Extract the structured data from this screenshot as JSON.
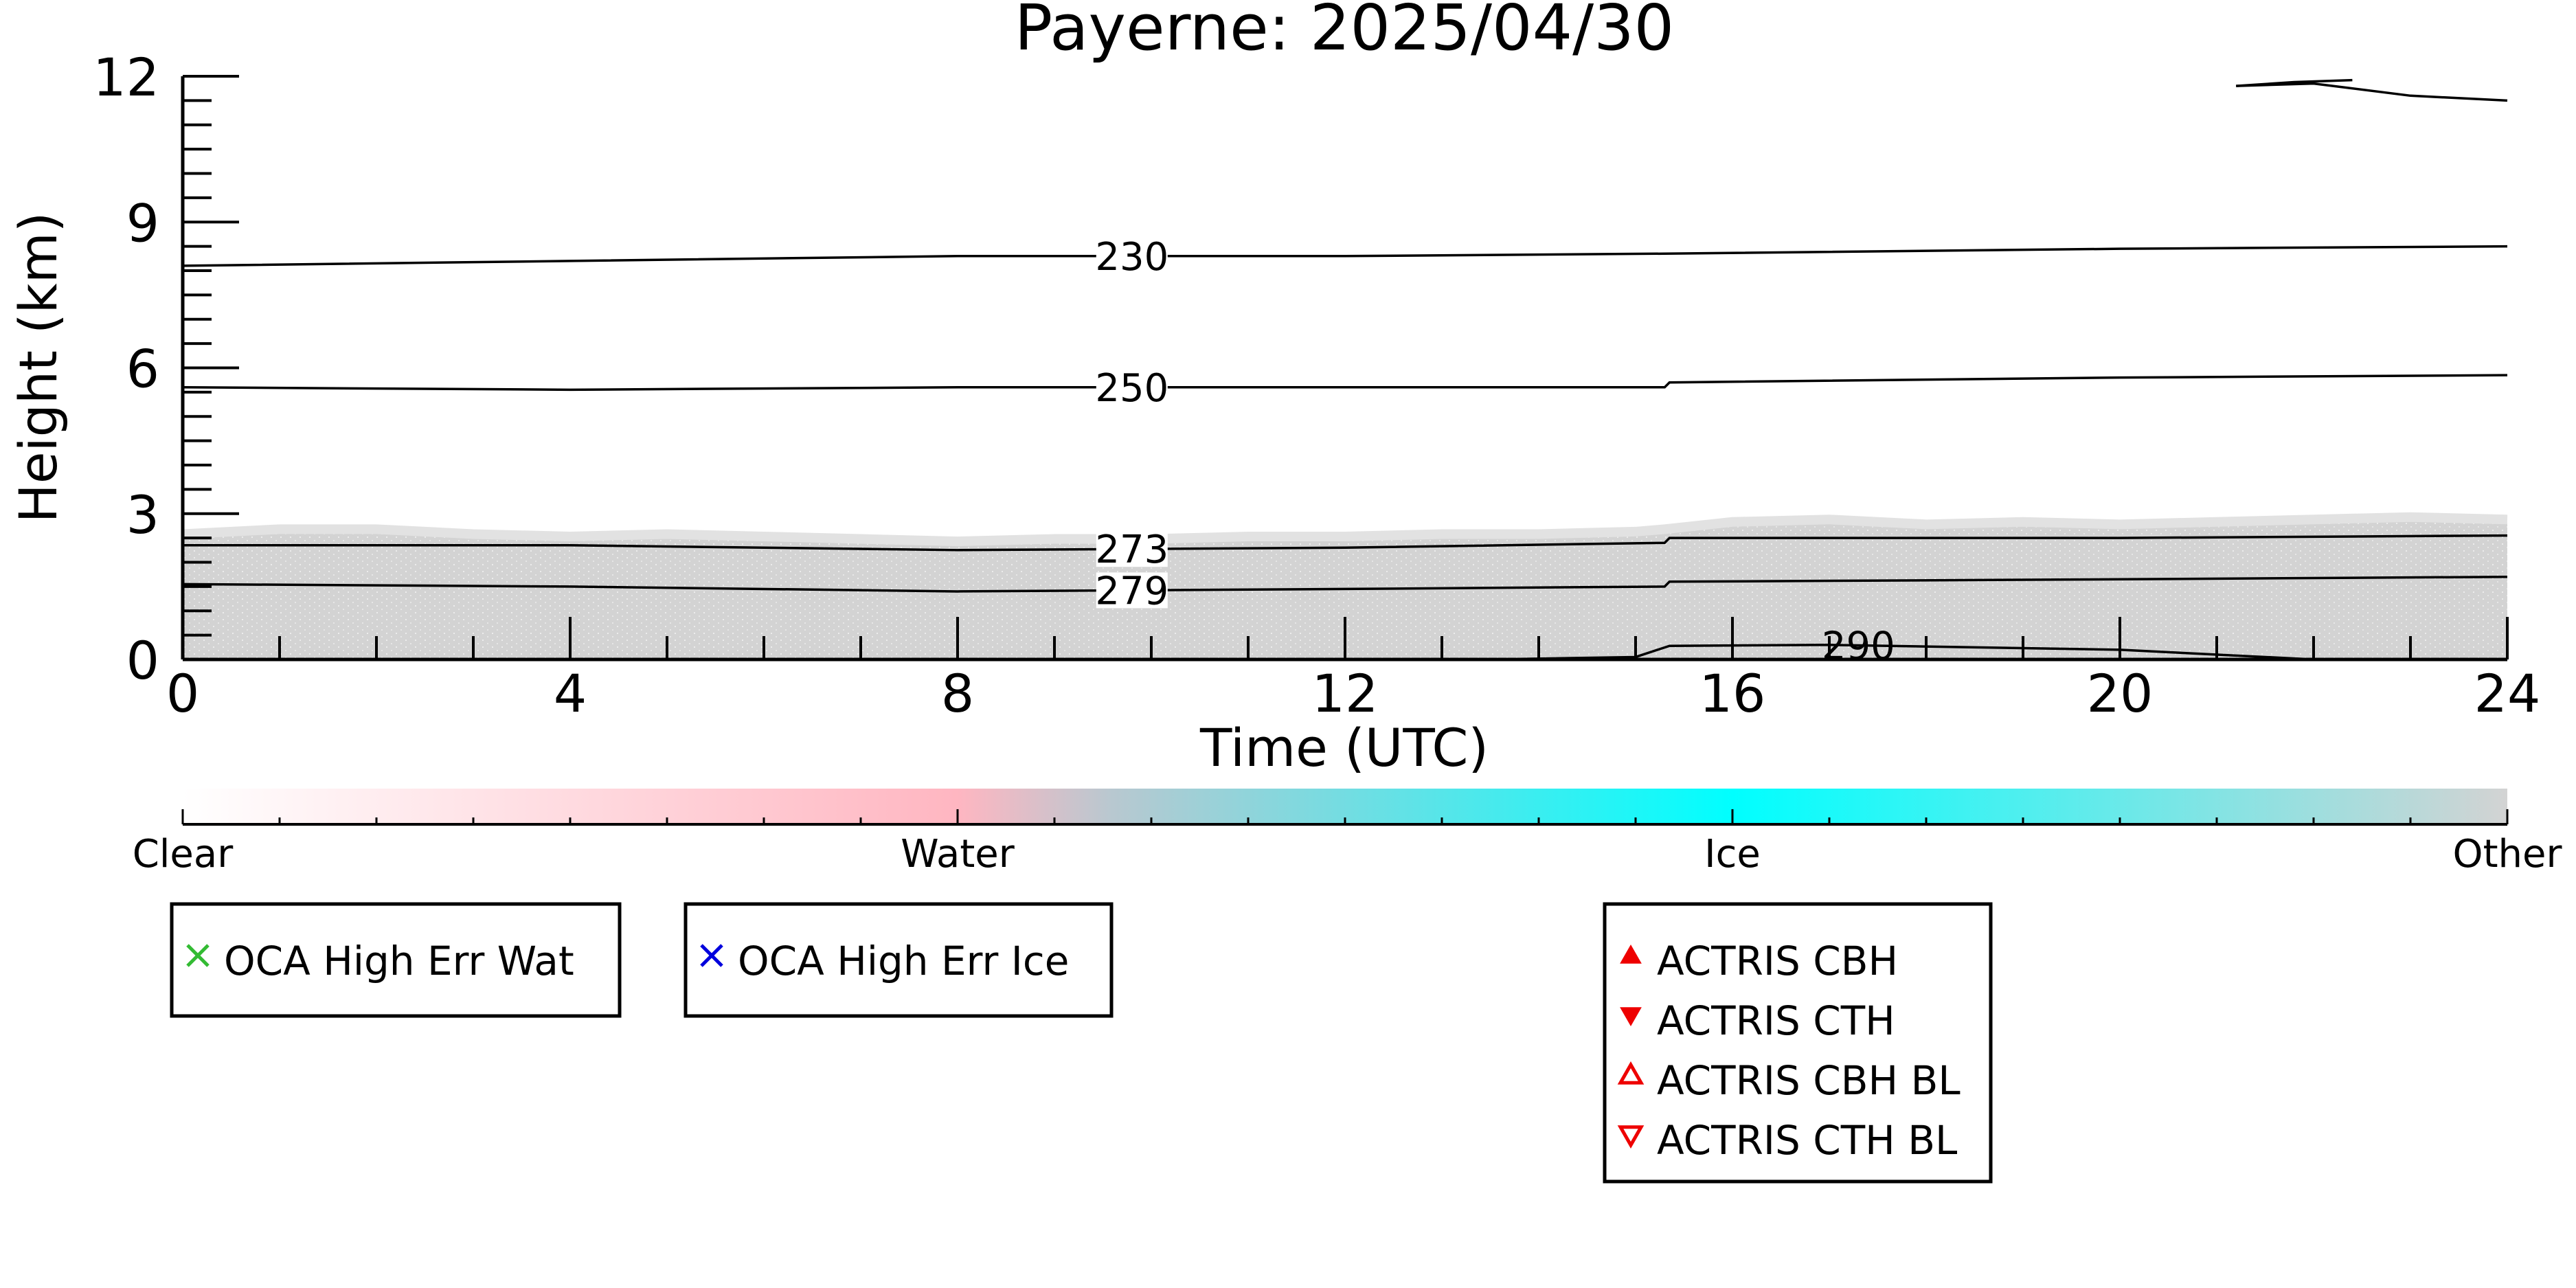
{
  "chart_data": {
    "type": "line",
    "title": "Payerne: 2025/04/30",
    "xlabel": "Time (UTC)",
    "ylabel": "Height (km)",
    "xlim": [
      0,
      24
    ],
    "ylim": [
      0,
      12
    ],
    "x_ticks": [
      0,
      4,
      8,
      12,
      16,
      20,
      24
    ],
    "y_ticks": [
      0,
      3,
      6,
      9,
      12
    ],
    "contour_series": [
      {
        "label": "230",
        "label_x": 9.8,
        "x": [
          0,
          4,
          8,
          12,
          15.3,
          20,
          24
        ],
        "y": [
          8.1,
          8.2,
          8.3,
          8.3,
          8.35,
          8.45,
          8.5
        ]
      },
      {
        "label": "250",
        "label_x": 9.8,
        "x": [
          0,
          4,
          8,
          12,
          15.3,
          15.35,
          20,
          24
        ],
        "y": [
          5.6,
          5.55,
          5.6,
          5.6,
          5.6,
          5.7,
          5.8,
          5.85
        ]
      },
      {
        "label": "273",
        "label_x": 9.8,
        "x": [
          0,
          4,
          8,
          12,
          15.3,
          15.35,
          20,
          24
        ],
        "y": [
          2.35,
          2.35,
          2.25,
          2.3,
          2.4,
          2.5,
          2.5,
          2.55
        ]
      },
      {
        "label": "279",
        "label_x": 9.8,
        "x": [
          0,
          4,
          8,
          12,
          15.3,
          15.35,
          20,
          24
        ],
        "y": [
          1.55,
          1.5,
          1.4,
          1.45,
          1.5,
          1.6,
          1.65,
          1.7
        ]
      },
      {
        "label": "290",
        "label_x": 17.3,
        "x": [
          13.5,
          15.0,
          15.35,
          17,
          20,
          22
        ],
        "y": [
          0.0,
          0.05,
          0.28,
          0.3,
          0.2,
          0.0
        ]
      }
    ],
    "upper_curve": {
      "x": [
        21.2,
        22,
        23,
        24
      ],
      "y": [
        11.8,
        11.85,
        11.6,
        11.5
      ]
    },
    "upper_curve_branch": {
      "x": [
        21.2,
        21.8,
        22.4
      ],
      "y": [
        11.8,
        11.88,
        11.92
      ]
    },
    "cloud_field": {
      "category": "Other",
      "x": [
        0,
        1,
        2,
        3,
        4,
        5,
        6,
        7,
        8,
        9,
        10,
        11,
        12,
        13,
        14,
        15,
        15.3,
        16,
        17,
        18,
        19,
        20,
        21,
        22,
        23,
        24
      ],
      "top_km": [
        2.5,
        2.6,
        2.6,
        2.5,
        2.45,
        2.5,
        2.45,
        2.4,
        2.35,
        2.4,
        2.4,
        2.45,
        2.45,
        2.5,
        2.5,
        2.55,
        2.6,
        2.75,
        2.8,
        2.7,
        2.75,
        2.7,
        2.75,
        2.8,
        2.85,
        2.8
      ]
    },
    "colorbar": {
      "labels": [
        "Clear",
        "Water",
        "Ice",
        "Other"
      ],
      "stops": [
        {
          "pos": 0.0,
          "color": "#ffffff"
        },
        {
          "pos": 0.333,
          "color": "#ffb6c1"
        },
        {
          "pos": 0.4,
          "color": "#b8c8d0"
        },
        {
          "pos": 0.667,
          "color": "#00ffff"
        },
        {
          "pos": 1.0,
          "color": "#d3d3d3"
        }
      ]
    },
    "legends": [
      {
        "items": [
          {
            "label": "OCA High Err Wat",
            "marker": "x-marker",
            "color": "#33bb33"
          }
        ]
      },
      {
        "items": [
          {
            "label": "OCA High Err Ice",
            "marker": "x-marker",
            "color": "#0000dd"
          }
        ]
      },
      {
        "items": [
          {
            "label": "ACTRIS CBH",
            "marker": "triangle-up-filled",
            "color": "#ee0000"
          },
          {
            "label": "ACTRIS CTH",
            "marker": "triangle-down-filled",
            "color": "#ee0000"
          },
          {
            "label": "ACTRIS CBH BL",
            "marker": "triangle-up-open",
            "color": "#ee0000"
          },
          {
            "label": "ACTRIS CTH BL",
            "marker": "triangle-down-open",
            "color": "#ee0000"
          }
        ]
      }
    ]
  }
}
